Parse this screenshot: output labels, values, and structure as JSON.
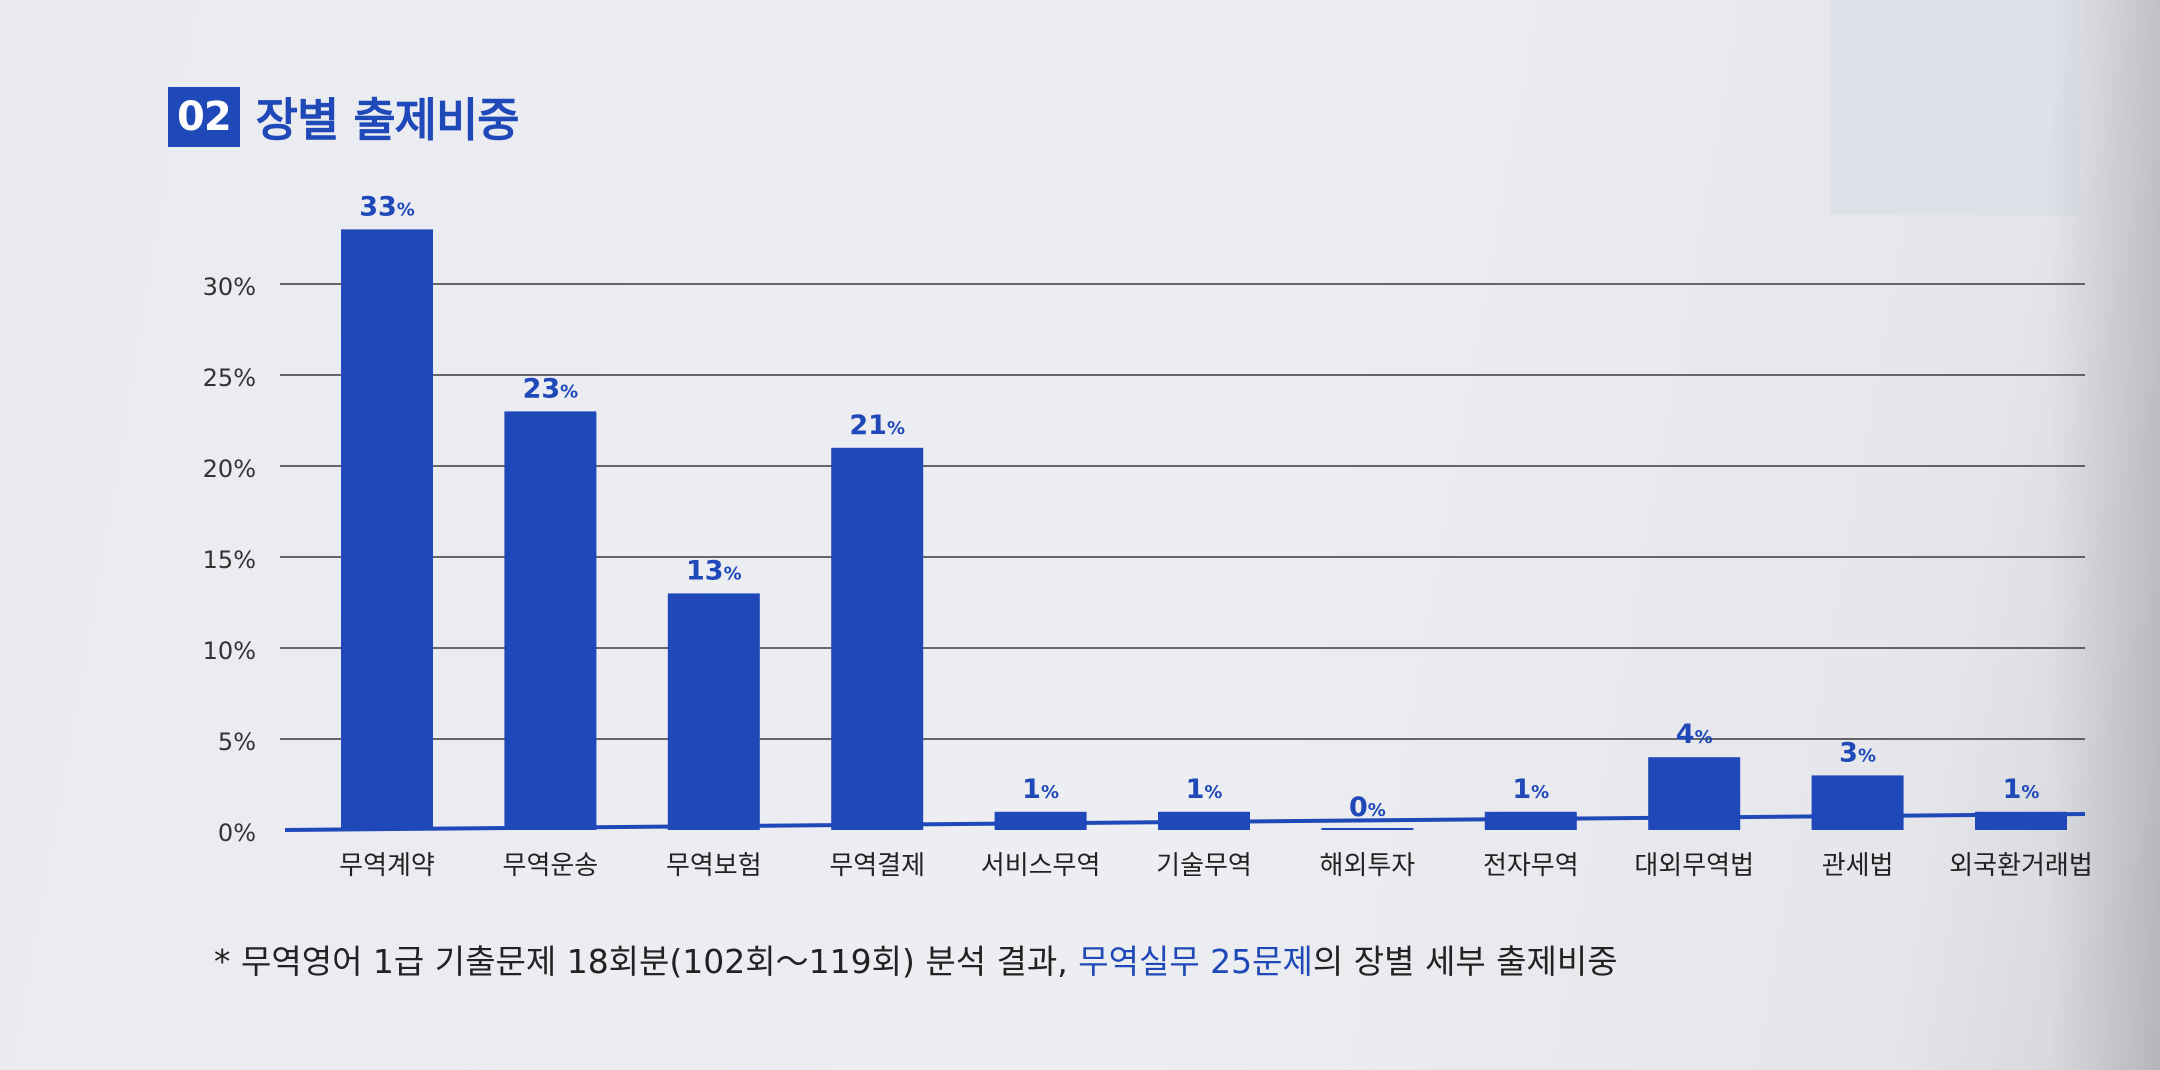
{
  "header": {
    "badge": "02",
    "title": "장별 출제비중"
  },
  "chart_data": {
    "type": "bar",
    "categories": [
      "무역계약",
      "무역운송",
      "무역보험",
      "무역결제",
      "서비스무역",
      "기술무역",
      "해외투자",
      "전자무역",
      "대외무역법",
      "관세법",
      "외국환거래법"
    ],
    "values": [
      33,
      23,
      13,
      21,
      1,
      1,
      0,
      1,
      4,
      3,
      1
    ],
    "value_labels": [
      "33%",
      "23%",
      "13%",
      "21%",
      "1%",
      "1%",
      "0%",
      "1%",
      "4%",
      "3%",
      "1%"
    ],
    "yticks": [
      "0%",
      "5%",
      "10%",
      "15%",
      "20%",
      "25%",
      "30%"
    ],
    "ylim": [
      0,
      33
    ],
    "grid": true,
    "bar_color": "#1f48b8"
  },
  "footnote": {
    "prefix": "* 무역영어 1급 기출문제 18회분(102회～119회) 분석 결과, ",
    "highlight": "무역실무 25문제",
    "suffix": "의 장별 세부 출제비중"
  }
}
